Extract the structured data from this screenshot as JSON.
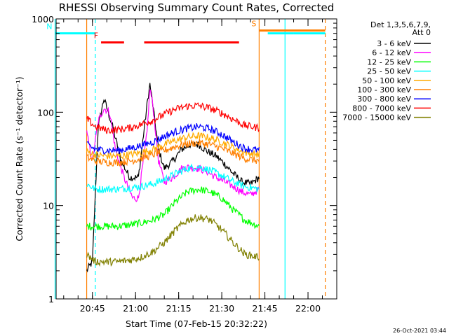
{
  "chart_data": {
    "type": "line",
    "title": "RHESSI Observing Summary Count Rates, Corrected",
    "xlabel": "Start Time (07-Feb-15 20:32:22)",
    "ylabel": "Corrected Count Rate (s⁻¹ detector⁻¹)",
    "x_tick_labels": [
      "20:45",
      "21:00",
      "21:15",
      "21:30",
      "21:45",
      "22:00"
    ],
    "y_tick_labels": [
      "1",
      "10",
      "100",
      "1000"
    ],
    "y_scale": "log",
    "ylim": [
      1,
      1000
    ],
    "xlim": [
      "20:32:22",
      "22:10:00"
    ],
    "legend_placement": "right, outside plot",
    "legend_header": [
      "Det 1,3,5,6,7,9,",
      "Att 0"
    ],
    "timestamp": "26-Oct-2021 03:44",
    "flags": [
      {
        "label": "N",
        "color": "#00ffff",
        "segments": [
          [
            "20:32",
            "20:46"
          ],
          [
            "21:46",
            "21:55"
          ],
          [
            "21:55",
            "22:06"
          ]
        ],
        "level": 700
      },
      {
        "label": "F",
        "color": "#ff0000",
        "segments": [
          [
            "20:48",
            "20:56"
          ],
          [
            "21:03",
            "21:36"
          ]
        ],
        "level": 560
      },
      {
        "label": "S",
        "color": "#ff7f00",
        "segments": [
          [
            "21:43",
            "22:06"
          ]
        ],
        "level": 750
      }
    ],
    "markers": [
      {
        "time": "20:32",
        "color": "#00ffff",
        "style": "solid"
      },
      {
        "time": "20:46",
        "color": "#00ffff",
        "style": "dashed"
      },
      {
        "time": "20:43",
        "color": "#ff7f00",
        "style": "solid"
      },
      {
        "time": "21:43",
        "color": "#ff7f00",
        "style": "solid"
      },
      {
        "time": "21:52",
        "color": "#00ffff",
        "style": "solid"
      },
      {
        "time": "22:06",
        "color": "#ff7f00",
        "style": "dashed"
      }
    ],
    "series": [
      {
        "name": "3 - 6 keV",
        "color": "#000000",
        "x": [
          "20:43",
          "20:45",
          "20:47",
          "20:49",
          "20:52",
          "20:55",
          "20:58",
          "21:01",
          "21:04",
          "21:05",
          "21:06",
          "21:08",
          "21:10",
          "21:13",
          "21:16",
          "21:19",
          "21:22",
          "21:25",
          "21:28",
          "21:31",
          "21:34",
          "21:37",
          "21:40",
          "21:43"
        ],
        "values": [
          2,
          2.5,
          70,
          140,
          70,
          30,
          20,
          20,
          120,
          200,
          120,
          40,
          25,
          30,
          40,
          45,
          45,
          38,
          34,
          28,
          22,
          18,
          17,
          20
        ]
      },
      {
        "name": "6 - 12 keV",
        "color": "#ff00ff",
        "x": [
          "20:43",
          "20:45",
          "20:47",
          "20:49",
          "20:51",
          "20:53",
          "20:56",
          "20:59",
          "21:01",
          "21:04",
          "21:05",
          "21:06",
          "21:08",
          "21:10",
          "21:13",
          "21:16",
          "21:19",
          "21:22",
          "21:25",
          "21:28",
          "21:31",
          "21:34",
          "21:37",
          "21:40",
          "21:43"
        ],
        "values": [
          60,
          30,
          80,
          110,
          100,
          40,
          20,
          12,
          12,
          60,
          180,
          120,
          30,
          18,
          20,
          25,
          26,
          25,
          23,
          20,
          18,
          16,
          14,
          13,
          15
        ]
      },
      {
        "name": "12 - 25 keV",
        "color": "#00ff00",
        "x": [
          "20:43",
          "20:46",
          "20:50",
          "20:54",
          "20:58",
          "21:02",
          "21:06",
          "21:10",
          "21:14",
          "21:18",
          "21:22",
          "21:26",
          "21:30",
          "21:34",
          "21:38",
          "21:43"
        ],
        "values": [
          6,
          6,
          6,
          6,
          6.2,
          6.5,
          7,
          8,
          11,
          14,
          15,
          14,
          12,
          9,
          7,
          6
        ]
      },
      {
        "name": "25 - 50 keV",
        "color": "#00ffff",
        "x": [
          "20:43",
          "20:46",
          "20:50",
          "20:54",
          "20:58",
          "21:02",
          "21:06",
          "21:10",
          "21:14",
          "21:18",
          "21:22",
          "21:26",
          "21:30",
          "21:34",
          "21:38",
          "21:43"
        ],
        "values": [
          17,
          15,
          15,
          15,
          15.5,
          16,
          17,
          19,
          22,
          25,
          26,
          24,
          21,
          18,
          16,
          15
        ]
      },
      {
        "name": "50 - 100 keV",
        "color": "#ffaa00",
        "x": [
          "20:43",
          "20:46",
          "20:50",
          "20:54",
          "20:58",
          "21:02",
          "21:06",
          "21:10",
          "21:14",
          "21:18",
          "21:22",
          "21:26",
          "21:30",
          "21:34",
          "21:38",
          "21:43"
        ],
        "values": [
          38,
          35,
          34,
          34,
          35,
          37,
          40,
          45,
          50,
          54,
          56,
          53,
          48,
          42,
          37,
          35
        ]
      },
      {
        "name": "100 - 300 keV",
        "color": "#ff7f00",
        "x": [
          "20:43",
          "20:46",
          "20:50",
          "20:54",
          "20:58",
          "21:02",
          "21:06",
          "21:10",
          "21:14",
          "21:18",
          "21:22",
          "21:26",
          "21:30",
          "21:34",
          "21:38",
          "21:43"
        ],
        "values": [
          33,
          30,
          29,
          29,
          30,
          32,
          35,
          39,
          43,
          46,
          47,
          45,
          41,
          36,
          32,
          30
        ]
      },
      {
        "name": "300 - 800 keV",
        "color": "#0000ff",
        "x": [
          "20:43",
          "20:46",
          "20:50",
          "20:54",
          "20:58",
          "21:02",
          "21:06",
          "21:10",
          "21:14",
          "21:18",
          "21:22",
          "21:26",
          "21:30",
          "21:34",
          "21:38",
          "21:43"
        ],
        "values": [
          45,
          40,
          39,
          39,
          41,
          44,
          48,
          55,
          62,
          67,
          70,
          66,
          58,
          48,
          41,
          39
        ]
      },
      {
        "name": "800 - 7000 keV",
        "color": "#ff0000",
        "x": [
          "20:43",
          "20:46",
          "20:50",
          "20:54",
          "20:58",
          "21:02",
          "21:06",
          "21:10",
          "21:14",
          "21:18",
          "21:22",
          "21:26",
          "21:30",
          "21:34",
          "21:38",
          "21:43"
        ],
        "values": [
          85,
          70,
          64,
          65,
          68,
          74,
          82,
          95,
          108,
          116,
          118,
          110,
          98,
          84,
          72,
          68
        ]
      },
      {
        "name": "7000 - 15000 keV",
        "color": "#808000",
        "x": [
          "20:43",
          "20:46",
          "20:50",
          "20:54",
          "20:58",
          "21:02",
          "21:06",
          "21:10",
          "21:14",
          "21:18",
          "21:22",
          "21:26",
          "21:30",
          "21:34",
          "21:38",
          "21:43"
        ],
        "values": [
          3,
          2.5,
          2.5,
          2.5,
          2.6,
          2.8,
          3.2,
          4,
          5.5,
          7,
          7.5,
          7,
          5.5,
          4,
          3,
          2.8
        ]
      }
    ]
  }
}
